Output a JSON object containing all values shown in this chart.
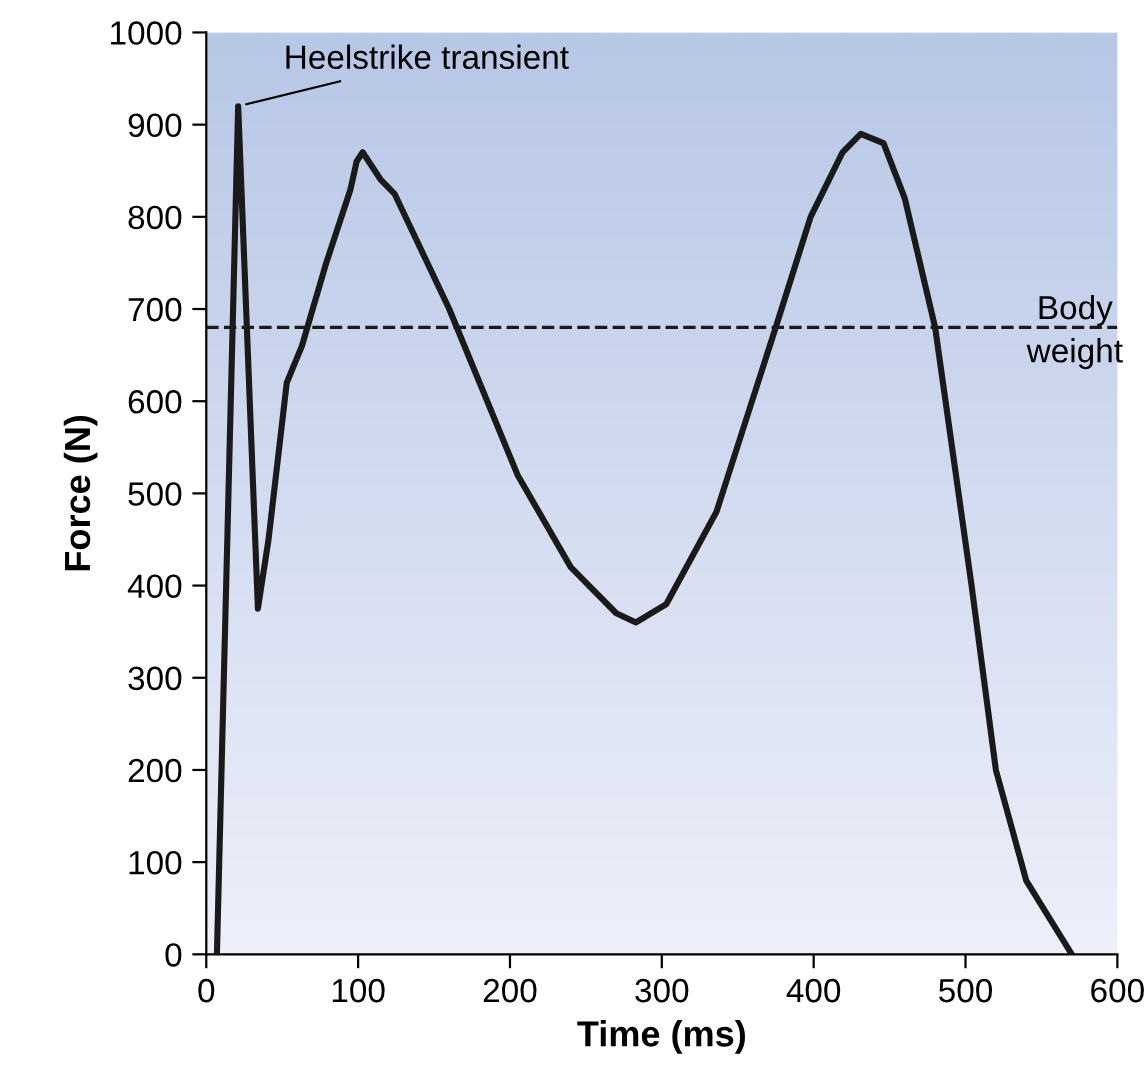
{
  "chart_data": {
    "type": "line",
    "xlabel": "Time (ms)",
    "ylabel": "Force (N)",
    "x": [
      7,
      21,
      34,
      41,
      53,
      63,
      79,
      95,
      99,
      103,
      115,
      124,
      160,
      205,
      240,
      270,
      283,
      303,
      336,
      375,
      398,
      419,
      431,
      446,
      460,
      480,
      504,
      520,
      540,
      570
    ],
    "series": [
      {
        "color": "#1a1a1a",
        "values": [
          0,
          920,
          375,
          450,
          620,
          660,
          750,
          830,
          860,
          870,
          840,
          825,
          700,
          520,
          420,
          370,
          360,
          380,
          480,
          680,
          800,
          870,
          890,
          880,
          820,
          680,
          400,
          200,
          80,
          0
        ]
      }
    ],
    "xlim": [
      0,
      600
    ],
    "ylim": [
      0,
      1000
    ],
    "xticks": [
      0,
      100,
      200,
      300,
      400,
      500,
      600
    ],
    "yticks": [
      0,
      100,
      200,
      300,
      400,
      500,
      600,
      700,
      800,
      900,
      1000
    ],
    "ref_lines": [
      {
        "axis": "y",
        "value": 680,
        "label": "Body\nweight",
        "line_style": "dashed",
        "color": "#1a1a1a"
      }
    ],
    "annotations": [
      {
        "text": "Heelstrike transient",
        "x": 21,
        "y": 920
      }
    ],
    "grid": false,
    "legend": false,
    "marker": "none",
    "line_style": "solid"
  }
}
